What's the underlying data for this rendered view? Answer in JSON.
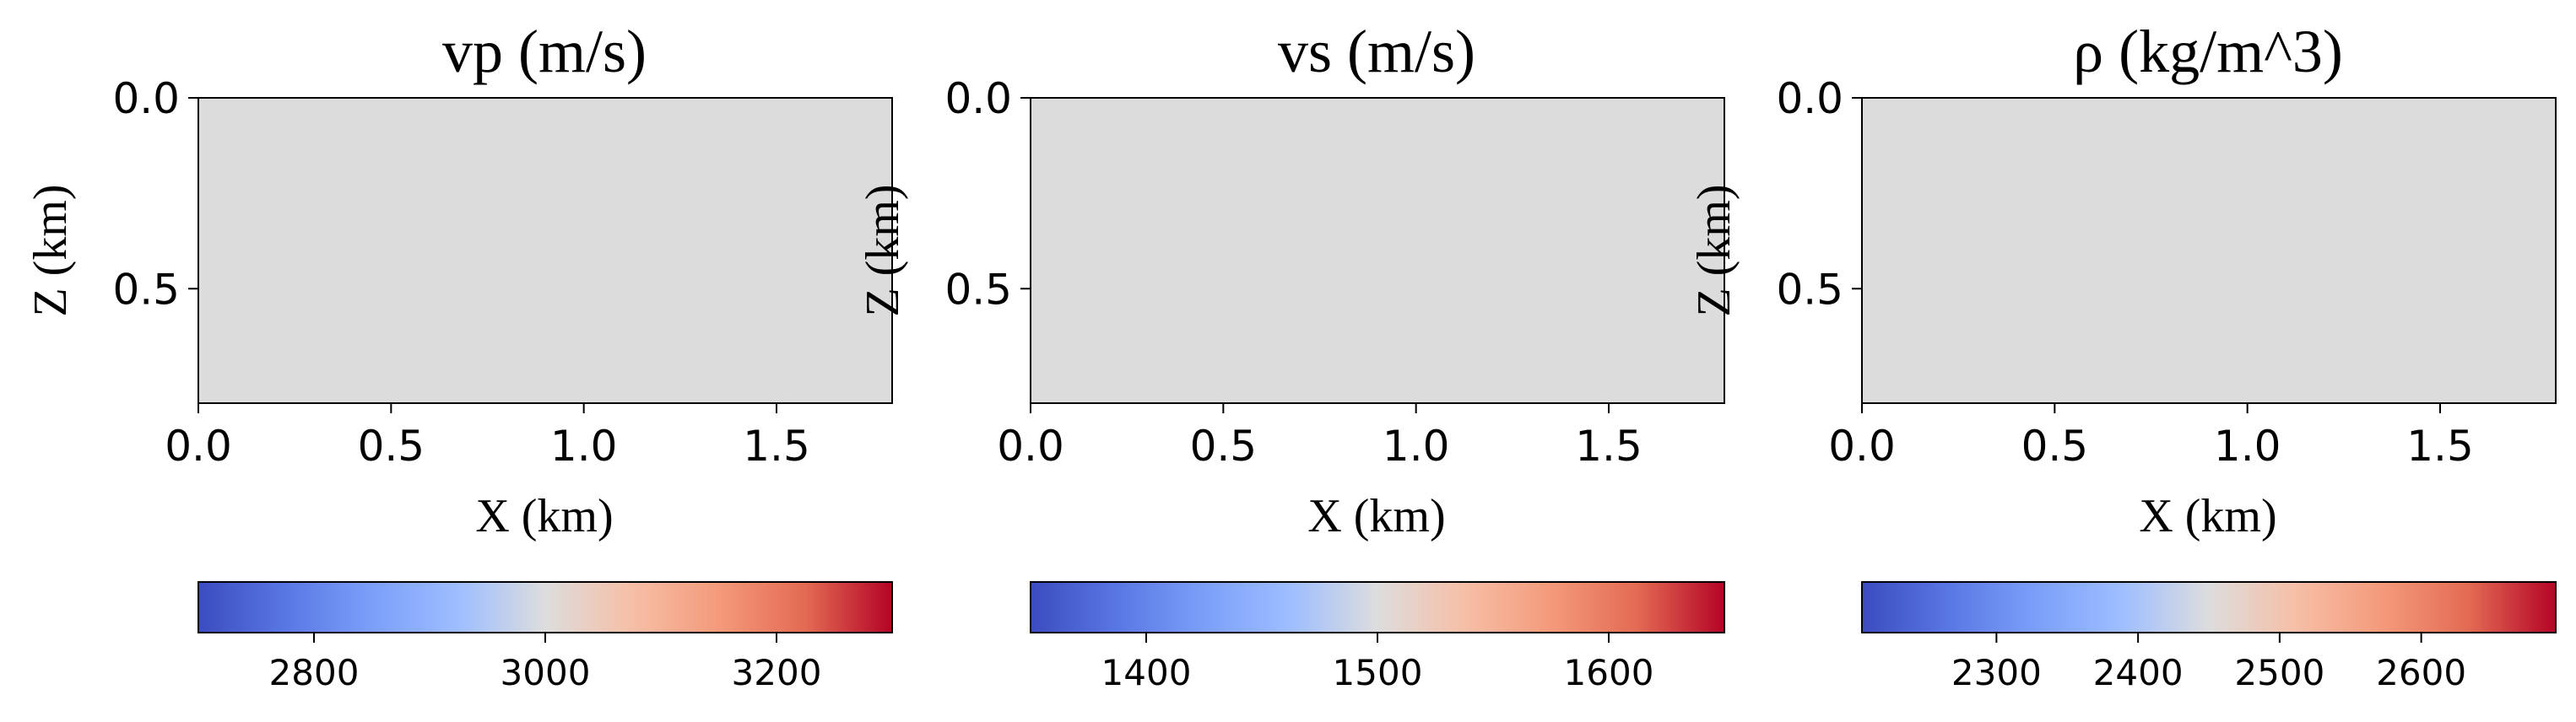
{
  "chart_data": [
    {
      "type": "heatmap",
      "title": "vp (m/s)",
      "xlabel": "X (km)",
      "ylabel": "Z (km)",
      "xlim": [
        0.0,
        1.8
      ],
      "ylim": [
        0.8,
        0.0
      ],
      "xticks": [
        "0.0",
        "0.5",
        "1.0",
        "1.5"
      ],
      "yticks": [
        "0.0",
        "0.5"
      ],
      "field_value": 3000,
      "colormap": "coolwarm",
      "fill_color": "#dcdcdc",
      "colorbar": {
        "range": [
          2700,
          3300
        ],
        "ticks": [
          "2800",
          "3000",
          "3200"
        ]
      }
    },
    {
      "type": "heatmap",
      "title": "vs (m/s)",
      "xlabel": "X (km)",
      "ylabel": "Z (km)",
      "xlim": [
        0.0,
        1.8
      ],
      "ylim": [
        0.8,
        0.0
      ],
      "xticks": [
        "0.0",
        "0.5",
        "1.0",
        "1.5"
      ],
      "yticks": [
        "0.0",
        "0.5"
      ],
      "field_value": 1500,
      "colormap": "coolwarm",
      "fill_color": "#dcdcdc",
      "colorbar": {
        "range": [
          1350,
          1650
        ],
        "ticks": [
          "1400",
          "1500",
          "1600"
        ]
      }
    },
    {
      "type": "heatmap",
      "title": "ρ (kg/m^3)",
      "xlabel": "X (km)",
      "ylabel": "Z (km)",
      "xlim": [
        0.0,
        1.8
      ],
      "ylim": [
        0.8,
        0.0
      ],
      "xticks": [
        "0.0",
        "0.5",
        "1.0",
        "1.5"
      ],
      "yticks": [
        "0.0",
        "0.5"
      ],
      "field_value": 2450,
      "colormap": "coolwarm",
      "fill_color": "#dcdcdc",
      "colorbar": {
        "range": [
          2205,
          2695
        ],
        "ticks": [
          "2300",
          "2400",
          "2500",
          "2600"
        ]
      }
    }
  ]
}
